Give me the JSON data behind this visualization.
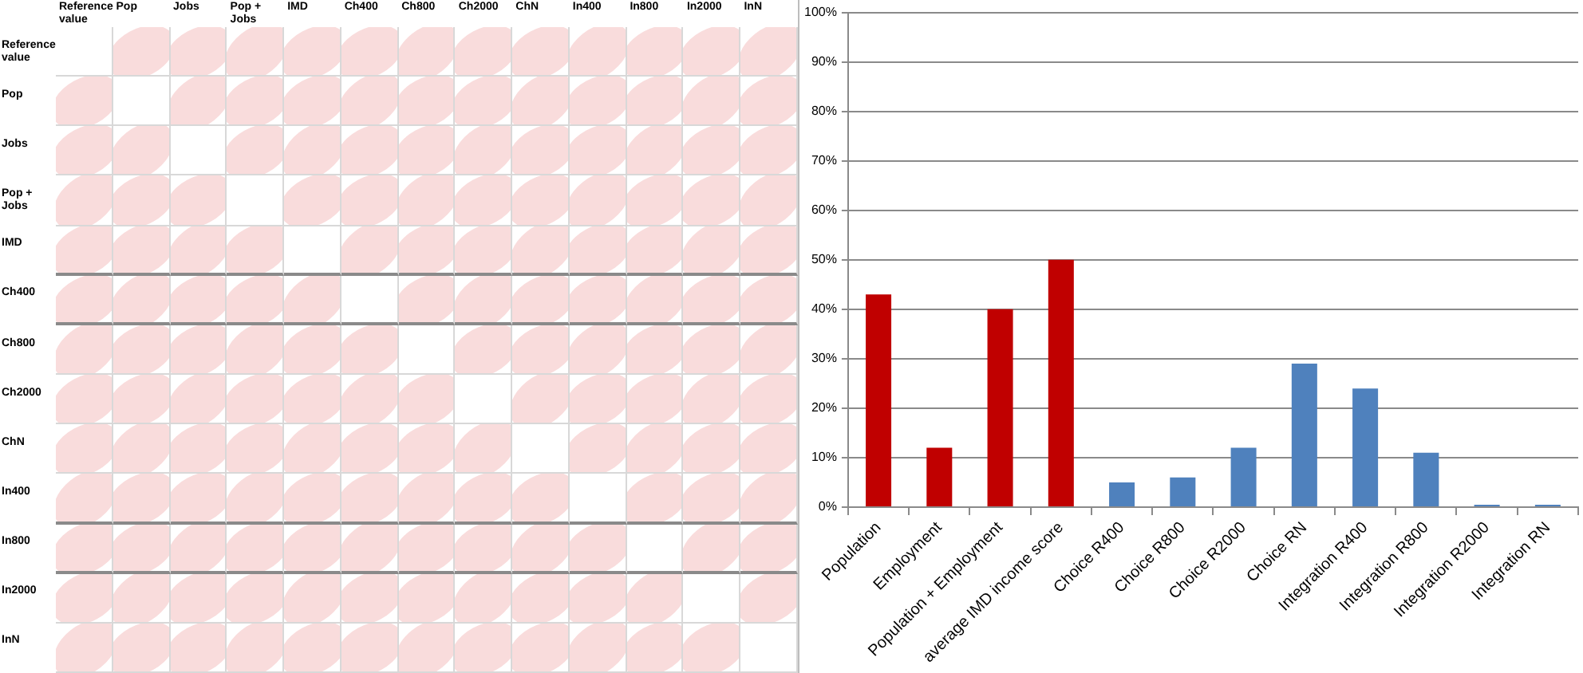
{
  "chart_data": [
    {
      "type": "other",
      "categories": [
        "Reference value",
        "Pop",
        "Jobs",
        "Pop + Jobs",
        "IMD",
        "Ch400",
        "Ch800",
        "Ch2000",
        "ChN",
        "In400",
        "In800",
        "In2000",
        "InN"
      ],
      "y_categories": [
        "Reference value",
        "Pop",
        "Jobs",
        "Pop + Jobs",
        "IMD",
        "Ch400",
        "Ch800",
        "Ch2000",
        "ChN",
        "In400",
        "In800",
        "In2000",
        "InN"
      ]
    },
    {
      "type": "bar",
      "categories": [
        "Population",
        "Employment",
        "Population + Employment",
        "average IMD income score",
        "Choice R400",
        "Choice R800",
        "Choice R2000",
        "Choice RN",
        "Integration R400",
        "Integration R800",
        "Integration R2000",
        "Integration RN"
      ],
      "values": [
        43,
        12,
        40,
        50,
        5,
        6,
        12,
        29,
        24,
        11,
        0.5,
        0.5
      ],
      "colors": [
        "#c00000",
        "#c00000",
        "#c00000",
        "#c00000",
        "#4f81bd",
        "#4f81bd",
        "#4f81bd",
        "#4f81bd",
        "#4f81bd",
        "#4f81bd",
        "#4f81bd",
        "#4f81bd"
      ],
      "ylim": [
        0,
        100
      ],
      "yticks": [
        {
          "value": 0,
          "label": "0%"
        },
        {
          "value": 10,
          "label": "10%"
        },
        {
          "value": 20,
          "label": "20%"
        },
        {
          "value": 30,
          "label": "30%"
        },
        {
          "value": 40,
          "label": "40%"
        },
        {
          "value": 50,
          "label": "50%"
        },
        {
          "value": 60,
          "label": "60%"
        },
        {
          "value": 70,
          "label": "70%"
        },
        {
          "value": 80,
          "label": "80%"
        },
        {
          "value": 90,
          "label": "90%"
        },
        {
          "value": 100,
          "label": "100%"
        }
      ],
      "grid": "y"
    }
  ]
}
